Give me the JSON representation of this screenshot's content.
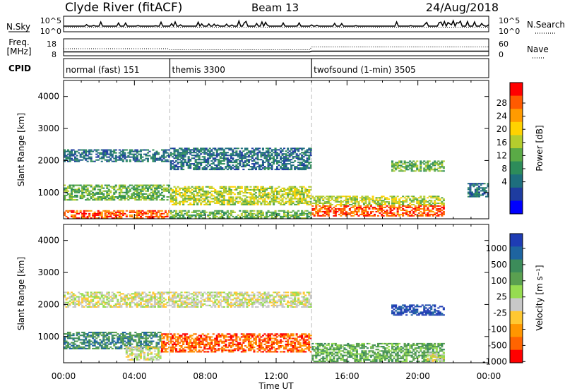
{
  "header": {
    "station": "Clyde River (fitACF)",
    "beam": "Beam 13",
    "date": "24/Aug/2018"
  },
  "top_panels": {
    "nsky_label": "N.Sky",
    "nsearch_label": "N.Search",
    "nsky_ticks": [
      "10^5",
      "10^0"
    ],
    "freq_label_1": "Freq.",
    "freq_label_2": "[MHz]",
    "freq_ticks": [
      "18",
      "8"
    ],
    "nave_ticks": [
      "60",
      "0"
    ],
    "nave_label": "Nave",
    "cpid_label": "CPID"
  },
  "cpid": [
    {
      "label": "normal (fast) 151",
      "start": 0,
      "end": 6
    },
    {
      "label": "themis 3300",
      "start": 6,
      "end": 14
    },
    {
      "label": "twofsound (1-min) 3505",
      "start": 14,
      "end": 24
    }
  ],
  "x_axis": {
    "label": "Time UT",
    "ticks": [
      "00:00",
      "04:00",
      "08:00",
      "12:00",
      "16:00",
      "20:00",
      "00:00"
    ]
  },
  "power_scale": {
    "label": "Power [dB]",
    "ticks": [
      "28",
      "24",
      "20",
      "16",
      "12",
      "8",
      "4"
    ],
    "colors": [
      "#ff0000",
      "#ff5a00",
      "#ff9b00",
      "#ffd200",
      "#b4cd2d",
      "#5aaa46",
      "#2d8c5a",
      "#1e6e7d",
      "#1e3ca0",
      "#0000ff"
    ]
  },
  "velocity_scale": {
    "label": "Velocity [m s⁻¹]",
    "ticks": [
      "1000",
      "500",
      "100",
      "25",
      "-25",
      "-100",
      "-500",
      "-1000"
    ],
    "colors": [
      "#1e3cb4",
      "#1e64a0",
      "#3c8c5a",
      "#5aa050",
      "#96dc50",
      "#c8c8c8",
      "#ffc832",
      "#ff9600",
      "#ff6400",
      "#ff0000"
    ]
  },
  "chart_data": [
    {
      "type": "heatmap",
      "title": "Power",
      "xlabel": "Time UT",
      "ylabel": "Slant Range [km]",
      "xlim": [
        0,
        24
      ],
      "ylim": [
        180,
        4500
      ],
      "yticks": [
        1000,
        2000,
        3000,
        4000
      ],
      "colorbar_label": "Power [dB]",
      "bands": [
        {
          "t0": 0.0,
          "t1": 6.0,
          "r0": 1950,
          "r1": 2350,
          "value": 8
        },
        {
          "t0": 0.0,
          "t1": 6.0,
          "r0": 750,
          "r1": 1250,
          "value": 16
        },
        {
          "t0": 0.0,
          "t1": 6.0,
          "r0": 180,
          "r1": 450,
          "value": 26
        },
        {
          "t0": 6.0,
          "t1": 14.0,
          "r0": 1700,
          "r1": 2400,
          "value": 10
        },
        {
          "t0": 6.0,
          "t1": 14.0,
          "r0": 600,
          "r1": 1200,
          "value": 18
        },
        {
          "t0": 6.0,
          "t1": 14.0,
          "r0": 180,
          "r1": 450,
          "value": 14
        },
        {
          "t0": 14.0,
          "t1": 21.5,
          "r0": 250,
          "r1": 600,
          "value": 28
        },
        {
          "t0": 14.0,
          "t1": 21.5,
          "r0": 600,
          "r1": 900,
          "value": 18
        },
        {
          "t0": 18.5,
          "t1": 21.5,
          "r0": 1650,
          "r1": 2000,
          "value": 14
        },
        {
          "t0": 22.8,
          "t1": 24.0,
          "r0": 850,
          "r1": 1300,
          "value": 8
        }
      ]
    },
    {
      "type": "heatmap",
      "title": "Velocity",
      "xlabel": "Time UT",
      "ylabel": "Slant Range [km]",
      "xlim": [
        0,
        24
      ],
      "ylim": [
        180,
        4500
      ],
      "yticks": [
        1000,
        2000,
        3000,
        4000
      ],
      "colorbar_label": "Velocity [m s⁻¹]",
      "bands": [
        {
          "t0": 0.0,
          "t1": 14.0,
          "r0": 1900,
          "r1": 2400,
          "value": 0
        },
        {
          "t0": 0.0,
          "t1": 5.5,
          "r0": 600,
          "r1": 1150,
          "value": 150
        },
        {
          "t0": 3.5,
          "t1": 5.5,
          "r0": 250,
          "r1": 700,
          "value": -10
        },
        {
          "t0": 5.5,
          "t1": 14.0,
          "r0": 500,
          "r1": 1100,
          "value": -300
        },
        {
          "t0": 14.0,
          "t1": 21.5,
          "r0": 200,
          "r1": 800,
          "value": 50
        },
        {
          "t0": 18.5,
          "t1": 21.5,
          "r0": 1650,
          "r1": 2000,
          "value": 700
        },
        {
          "t0": 20.5,
          "t1": 21.5,
          "r0": 200,
          "r1": 500,
          "value": 0
        }
      ]
    }
  ]
}
